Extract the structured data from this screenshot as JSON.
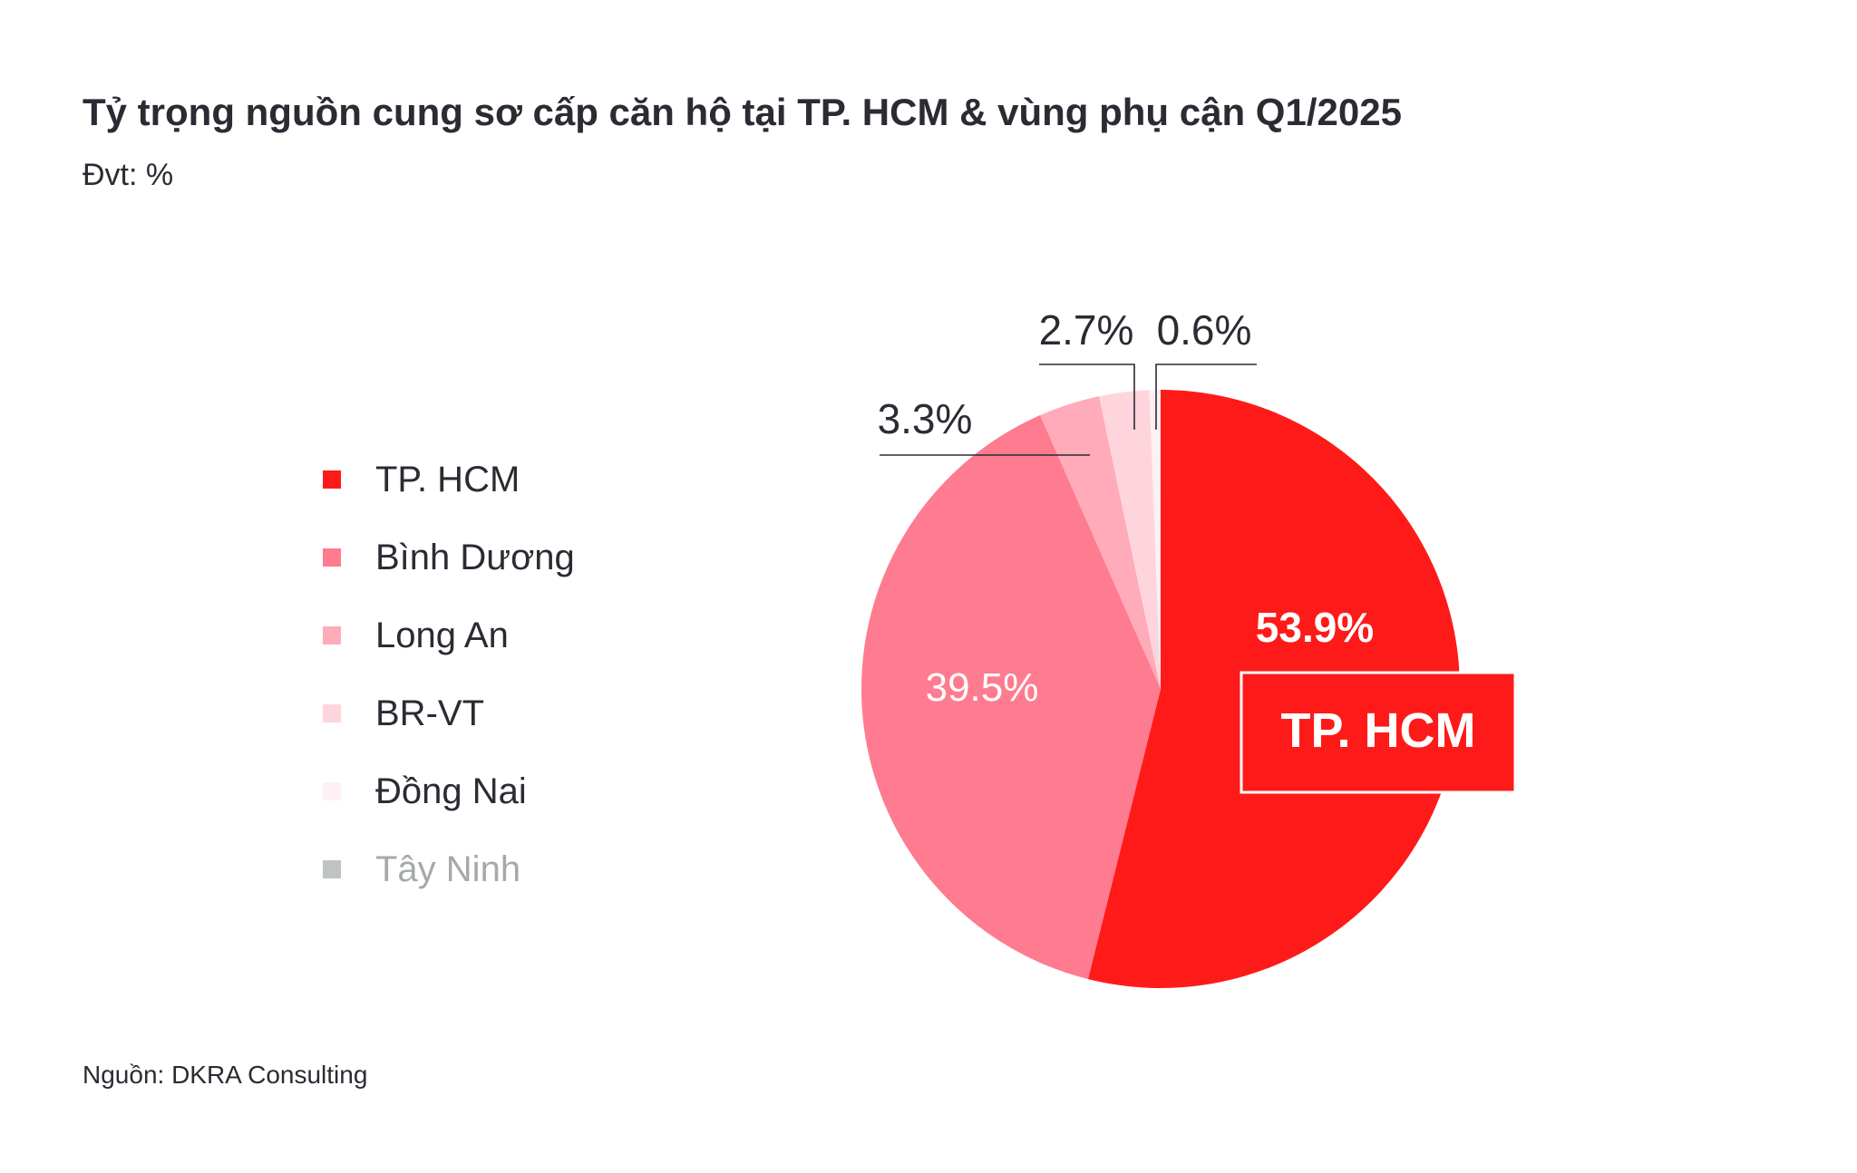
{
  "chart_data": {
    "type": "pie",
    "title": "Tỷ trọng nguồn cung sơ cấp căn hộ tại TP. HCM & vùng phụ cận Q1/2025",
    "subtitle": "Đvt: %",
    "source": "Nguồn: DKRA Consulting",
    "slices": [
      {
        "name": "TP. HCM",
        "value": 53.9,
        "label": "53.9%",
        "color": "#ff1a1a"
      },
      {
        "name": "Bình Dương",
        "value": 39.5,
        "label": "39.5%",
        "color": "#ff7b8f"
      },
      {
        "name": "Long An",
        "value": 3.3,
        "label": "3.3%",
        "color": "#ffabb9"
      },
      {
        "name": "BR-VT",
        "value": 2.7,
        "label": "2.7%",
        "color": "#ffd5dd"
      },
      {
        "name": "Đồng Nai",
        "value": 0.6,
        "label": "0.6%",
        "color": "#fff0f3"
      },
      {
        "name": "Tây Ninh",
        "value": 0,
        "label": "",
        "color": "#bfc3c4"
      }
    ],
    "callout": "TP. HCM",
    "legend_position": "left"
  }
}
